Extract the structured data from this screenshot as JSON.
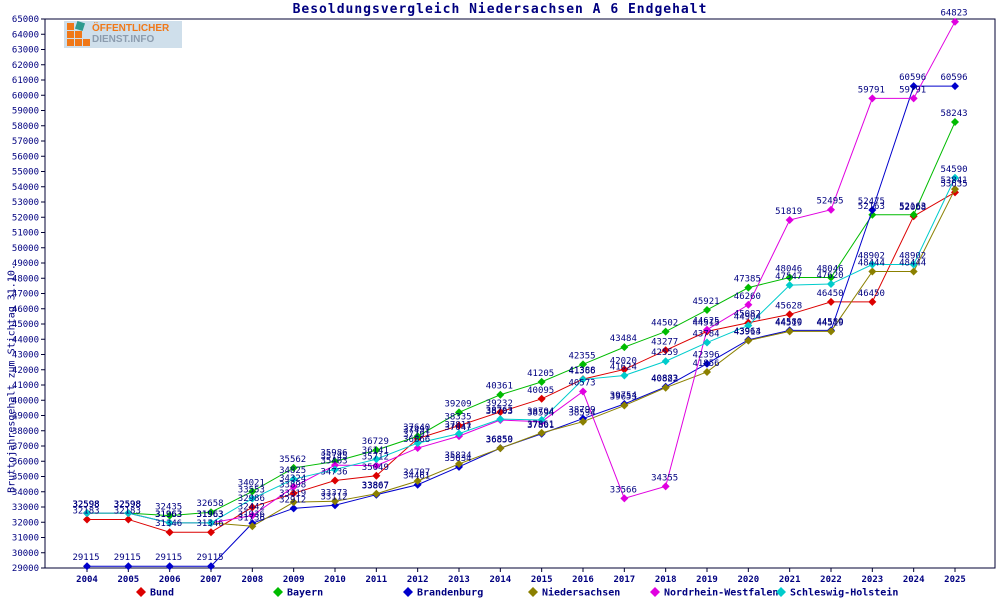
{
  "title": "Besoldungsvergleich Niedersachsen A 6 Endgehalt",
  "y_axis_title": "Bruttojahresgehalt zum Stichtag 31.10.",
  "logo": {
    "line1": "ÖFFENTLICHER",
    "line2": "DIENST.INFO"
  },
  "colors": {
    "text": "#000080",
    "frame": "#000033",
    "background": "#ffffff"
  },
  "chart_data": {
    "type": "line",
    "title": "Besoldungsvergleich Niedersachsen A 6 Endgehalt",
    "xlabel": "",
    "ylabel": "Bruttojahresgehalt zum Stichtag 31.10.",
    "ylim": [
      29000,
      65000
    ],
    "ytick_step": 1000,
    "grid": false,
    "legend_position": "bottom",
    "marker": "diamond",
    "point_labels": true,
    "x": [
      2004,
      2005,
      2006,
      2007,
      2008,
      2009,
      2010,
      2011,
      2012,
      2013,
      2014,
      2015,
      2016,
      2017,
      2018,
      2019,
      2020,
      2021,
      2022,
      2023,
      2024,
      2025
    ],
    "series": [
      {
        "name": "Bund",
        "color": "#dc0000",
        "values": [
          32183,
          32183,
          31346,
          31346,
          32986,
          33898,
          34736,
          35049,
          37491,
          38335,
          39232,
          40095,
          41388,
          42020,
          43277,
          44515,
          45082,
          45628,
          46450,
          46450,
          52068,
          53635
        ]
      },
      {
        "name": "Bayern",
        "color": "#00bb00",
        "values": [
          32598,
          32598,
          32435,
          32658,
          34021,
          35562,
          35986,
          36729,
          37640,
          39209,
          40361,
          41205,
          42355,
          43484,
          44502,
          45921,
          47385,
          48046,
          48046,
          52163,
          52163,
          58243
        ]
      },
      {
        "name": "Brandenburg",
        "color": "#0000cc",
        "values": [
          29115,
          29115,
          29115,
          29115,
          31936,
          32912,
          33112,
          33807,
          34461,
          35634,
          36859,
          37801,
          38799,
          39754,
          40883,
          42396,
          43964,
          44580,
          44580,
          52475,
          60596,
          60596
        ]
      },
      {
        "name": "Niedersachsen",
        "color": "#8b8000",
        "values": [
          32598,
          32598,
          31963,
          31963,
          31736,
          33319,
          33373,
          33867,
          34707,
          35824,
          36850,
          37861,
          38594,
          39653,
          40822,
          41856,
          43913,
          44519,
          44519,
          48444,
          48444,
          53841
        ]
      },
      {
        "name": "Nordrhein-Westfalen",
        "color": "#e000e0",
        "values": [
          32598,
          32598,
          31963,
          31963,
          32442,
          34324,
          35745,
          35712,
          36866,
          37647,
          38703,
          38594,
          40573,
          33566,
          34355,
          44625,
          46260,
          51819,
          52495,
          59791,
          59791,
          64823
        ]
      },
      {
        "name": "Schleswig-Holstein",
        "color": "#00cccc",
        "values": [
          32598,
          32598,
          31963,
          31963,
          33553,
          34825,
          35463,
          36141,
          37191,
          37811,
          38763,
          38704,
          41366,
          41624,
          42559,
          43784,
          44904,
          47547,
          47620,
          48902,
          48902,
          54590
        ]
      }
    ]
  }
}
